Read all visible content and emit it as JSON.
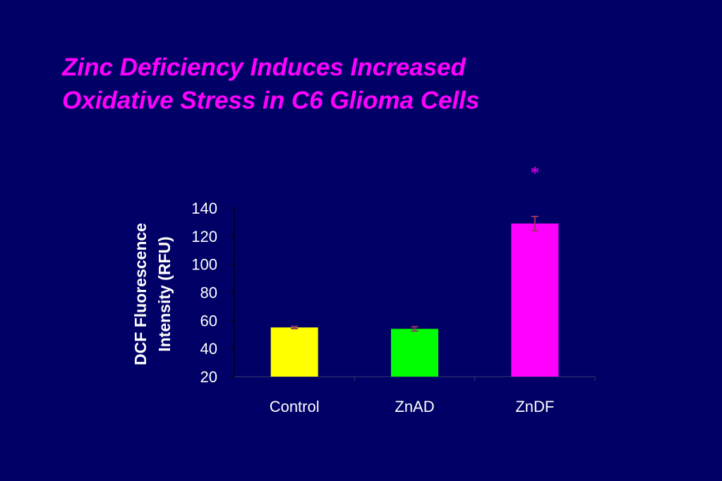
{
  "slide": {
    "title_line1": "Zinc Deficiency Induces Increased",
    "title_line2": "Oxidative Stress in C6 Glioma Cells"
  },
  "chart_data": {
    "type": "bar",
    "title": "",
    "xlabel": "",
    "ylabel": "DCF Fluorescence Intensity (RFU)",
    "ylabel_lines": [
      "DCF Fluorescence",
      "Intensity (RFU)"
    ],
    "ylim": [
      20,
      140
    ],
    "yticks": [
      20,
      40,
      60,
      80,
      100,
      120,
      140
    ],
    "categories": [
      "Control",
      "ZnAD",
      "ZnDF"
    ],
    "values": [
      55,
      54,
      129
    ],
    "errors": [
      0.8,
      1.5,
      5
    ],
    "colors": [
      "#ffff00",
      "#00ff00",
      "#ff00ff"
    ],
    "error_bar_color": "#993366",
    "significance_marker": "*",
    "significance_category": "ZnDF",
    "grid": false
  }
}
